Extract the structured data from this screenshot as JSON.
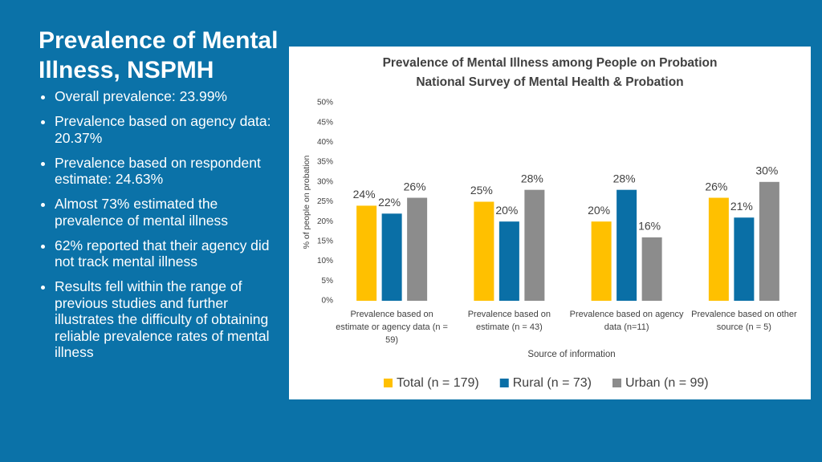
{
  "slide": {
    "title": "Prevalence of Mental Illness, NSPMH",
    "bullets": [
      "Overall prevalence: 23.99%",
      "Prevalence based on agency data: 20.37%",
      "Prevalence based on respondent estimate: 24.63%",
      "Almost 73% estimated the prevalence of mental illness",
      "62% reported that their agency did not track mental illness",
      "Results fell within the range of previous studies and further illustrates the difficulty of obtaining reliable prevalence rates of mental illness"
    ]
  },
  "chart_data": {
    "type": "bar",
    "title": "Prevalence of Mental Illness among People on Probation",
    "subtitle": "National Survey of Mental Health & Probation",
    "x_label": "Source of information",
    "y_label": "% of people on probation",
    "categories": [
      "Prevalence based on estimate or agency data (n = 59)",
      "Prevalence based on estimate (n = 43)",
      "Prevalence based on agency data (n=11)",
      "Prevalence based on other source (n = 5)"
    ],
    "series": [
      {
        "name": "Total (n = 179)",
        "color": "#ffc000",
        "values": [
          24,
          25,
          20,
          26
        ],
        "value_labels": [
          "24%",
          "25%",
          "20%",
          "26%"
        ]
      },
      {
        "name": "Rural (n = 73)",
        "color": "#0a6fa6",
        "values": [
          22,
          20,
          28,
          21
        ],
        "value_labels": [
          "22%",
          "20%",
          "28%",
          "21%"
        ]
      },
      {
        "name": "Urban (n = 99)",
        "color": "#8c8c8c",
        "values": [
          26,
          28,
          16,
          30
        ],
        "value_labels": [
          "26%",
          "28%",
          "16%",
          "30%"
        ]
      }
    ],
    "ylim": [
      0,
      50
    ],
    "yticks": [
      {
        "value": 0,
        "label": "0%"
      },
      {
        "value": 5,
        "label": "5%"
      },
      {
        "value": 10,
        "label": "10%"
      },
      {
        "value": 15,
        "label": "15%"
      },
      {
        "value": 20,
        "label": "20%"
      },
      {
        "value": 25,
        "label": "25%"
      },
      {
        "value": 30,
        "label": "30%"
      },
      {
        "value": 35,
        "label": "35%"
      },
      {
        "value": 40,
        "label": "40%"
      },
      {
        "value": 45,
        "label": "45%"
      },
      {
        "value": 50,
        "label": "50%"
      }
    ],
    "grid": false,
    "legend": "bottom"
  }
}
